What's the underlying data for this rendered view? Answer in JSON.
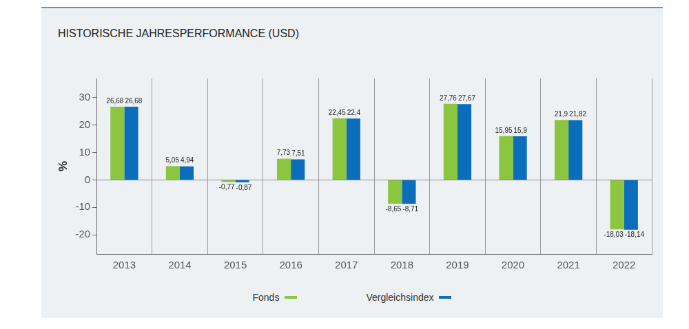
{
  "chart_data": {
    "type": "bar",
    "title": "HISTORISCHE JAHRESPERFORMANCE (USD)",
    "y_label": "%",
    "categories": [
      "2013",
      "2014",
      "2015",
      "2016",
      "2017",
      "2018",
      "2019",
      "2020",
      "2021",
      "2022"
    ],
    "series": [
      {
        "name": "Fonds",
        "color": "#8cc63e",
        "values": [
          26.68,
          5.05,
          -0.77,
          7.73,
          22.45,
          -8.65,
          27.76,
          15.95,
          21.9,
          -18.03
        ],
        "value_labels": [
          "26,68",
          "5,05",
          "-0,77",
          "7,73",
          "22,45",
          "-8,65",
          "27,76",
          "15,95",
          "21,9",
          "-18,03"
        ]
      },
      {
        "name": "Vergleichsindex",
        "color": "#0a6ebd",
        "values": [
          26.68,
          4.94,
          -0.87,
          7.51,
          22.4,
          -8.71,
          27.67,
          15.9,
          21.82,
          -18.14
        ],
        "value_labels": [
          "26,68",
          "4,94",
          "-0,87",
          "7,51",
          "22,4",
          "-8,71",
          "27,67",
          "15,9",
          "21,82",
          "-18,14"
        ]
      }
    ],
    "ylim": [
      -27,
      37
    ],
    "yticks": [
      -20,
      -10,
      0,
      10,
      20,
      30
    ],
    "grid": "x",
    "legend": "bottom",
    "data_labels": true
  }
}
